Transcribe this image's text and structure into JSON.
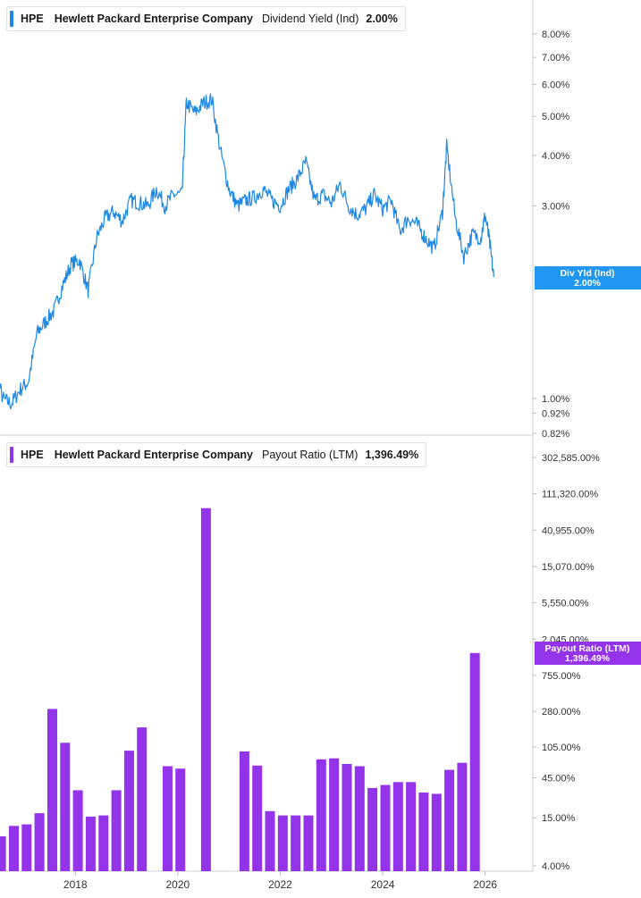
{
  "colors": {
    "dividend_line": "#1e88e5",
    "dividend_badge": "#2196f3",
    "payout_bar": "#9333ea",
    "payout_badge": "#9333ea"
  },
  "panels": {
    "top": {
      "ticker": "HPE",
      "company": "Hewlett Packard Enterprise Company",
      "metric": "Dividend Yield (Ind)",
      "value": "2.00%",
      "badge_line1": "Div Yld (Ind)",
      "badge_line2": "2.00%"
    },
    "bottom": {
      "ticker": "HPE",
      "company": "Hewlett Packard Enterprise Company",
      "metric": "Payout Ratio (LTM)",
      "value": "1,396.49%",
      "badge_line1": "Payout Ratio (LTM)",
      "badge_line2": "1,396.49%"
    }
  },
  "chart_data": [
    {
      "type": "line",
      "title": "Dividend Yield (Ind)",
      "series_name": "Div Yld (Ind)",
      "y_scale": "log",
      "ylim": [
        0.82,
        10.0
      ],
      "y_ticks": [
        "8.00%",
        "7.00%",
        "6.00%",
        "5.00%",
        "4.00%",
        "3.00%",
        "2.00%",
        "1.00%",
        "0.92%",
        "0.82%"
      ],
      "y_tick_values": [
        8,
        7,
        6,
        5,
        4,
        3,
        2,
        1,
        0.92,
        0.82
      ],
      "xlim": [
        "2016-04-01",
        "2026-07-01"
      ],
      "x": [
        "2016-04",
        "2016-06",
        "2016-08",
        "2016-10",
        "2016-12",
        "2017-02",
        "2017-04",
        "2017-06",
        "2017-08",
        "2017-10",
        "2017-12",
        "2018-02",
        "2018-04",
        "2018-06",
        "2018-08",
        "2018-10",
        "2018-12",
        "2019-02",
        "2019-04",
        "2019-06",
        "2019-08",
        "2019-10",
        "2019-12",
        "2020-02",
        "2020-03",
        "2020-05",
        "2020-07",
        "2020-09",
        "2020-11",
        "2021-01",
        "2021-03",
        "2021-05",
        "2021-07",
        "2021-09",
        "2021-11",
        "2022-01",
        "2022-03",
        "2022-05",
        "2022-07",
        "2022-09",
        "2022-11",
        "2023-01",
        "2023-03",
        "2023-05",
        "2023-07",
        "2023-09",
        "2023-11",
        "2024-01",
        "2024-03",
        "2024-05",
        "2024-07",
        "2024-09",
        "2024-11",
        "2025-01",
        "2025-03",
        "2025-04",
        "2025-06",
        "2025-08",
        "2025-10",
        "2025-12",
        "2026-01",
        "2026-02",
        "2026-03"
      ],
      "values": [
        1.5,
        1.2,
        1.0,
        0.97,
        1.05,
        1.1,
        1.45,
        1.55,
        1.65,
        1.9,
        2.15,
        2.2,
        1.85,
        2.5,
        2.8,
        2.9,
        2.75,
        3.1,
        3.05,
        3.0,
        3.3,
        3.0,
        3.2,
        3.2,
        5.4,
        5.1,
        5.4,
        5.5,
        4.1,
        3.3,
        3.0,
        3.1,
        3.15,
        3.3,
        3.1,
        3.0,
        3.3,
        3.5,
        3.85,
        3.1,
        3.2,
        3.05,
        3.4,
        3.0,
        2.85,
        2.95,
        3.2,
        2.95,
        3.1,
        2.6,
        2.8,
        2.7,
        2.5,
        2.35,
        2.9,
        4.2,
        2.8,
        2.25,
        2.55,
        2.5,
        2.85,
        2.45,
        2.0
      ]
    },
    {
      "type": "bar",
      "title": "Payout Ratio (LTM)",
      "series_name": "Payout Ratio (LTM)",
      "y_scale": "log",
      "ylim": [
        3.5,
        400000
      ],
      "y_ticks": [
        "302,585.00%",
        "111,320.00%",
        "40,955.00%",
        "15,070.00%",
        "5,550.00%",
        "2,045.00%",
        "755.00%",
        "280.00%",
        "105.00%",
        "45.00%",
        "15.00%",
        "4.00%"
      ],
      "y_tick_values": [
        302585,
        111320,
        40955,
        15070,
        5550,
        2045,
        755,
        280,
        105,
        45,
        15,
        4
      ],
      "x_ticks": [
        "2018",
        "2020",
        "2022",
        "2024",
        "2026"
      ],
      "x_tick_values": [
        2018.0,
        2020.0,
        2022.0,
        2024.0,
        2026.0
      ],
      "x": [
        2016.55,
        2016.8,
        2017.05,
        2017.3,
        2017.55,
        2017.8,
        2018.05,
        2018.3,
        2018.55,
        2018.8,
        2019.05,
        2019.3,
        2019.8,
        2020.05,
        2020.55,
        2021.3,
        2021.55,
        2021.8,
        2022.05,
        2022.3,
        2022.55,
        2022.8,
        2023.05,
        2023.3,
        2023.55,
        2023.8,
        2024.05,
        2024.3,
        2024.55,
        2024.8,
        2025.05,
        2025.3,
        2025.55,
        2025.8
      ],
      "values": [
        9,
        12,
        12.5,
        17,
        300,
        118,
        32,
        15.5,
        16,
        32,
        95,
        180,
        62,
        58,
        75000,
        93,
        63,
        18,
        16,
        16,
        16,
        75,
        77,
        66,
        62,
        34,
        37,
        40,
        40,
        30,
        29,
        56,
        68,
        1396.49
      ]
    }
  ]
}
